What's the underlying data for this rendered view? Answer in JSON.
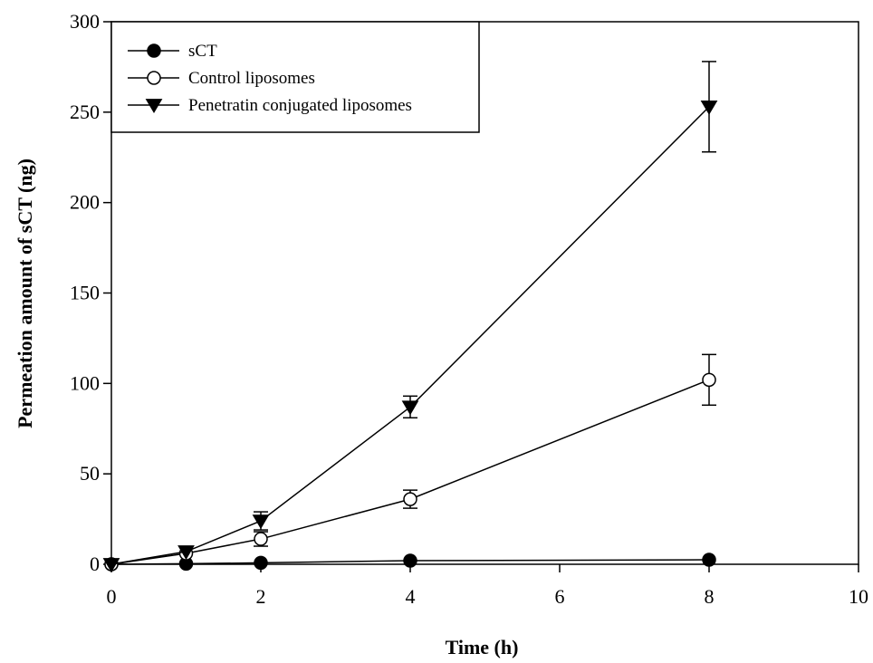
{
  "chart_data": {
    "type": "line",
    "title": "",
    "xlabel": "Time (h)",
    "ylabel": "Permeation amount of sCT (ng)",
    "xlim": [
      0,
      10
    ],
    "ylim": [
      0,
      300
    ],
    "xticks": [
      0,
      2,
      4,
      6,
      8,
      10
    ],
    "yticks": [
      0,
      50,
      100,
      150,
      200,
      250,
      300
    ],
    "grid": false,
    "legend_position": "top-left",
    "series": [
      {
        "name": "sCT",
        "marker": "filled-circle",
        "color": "#000000",
        "points": [
          {
            "x": 0,
            "y": 0,
            "err": 0
          },
          {
            "x": 1,
            "y": 0.3,
            "err": 0
          },
          {
            "x": 2,
            "y": 0.8,
            "err": 0
          },
          {
            "x": 4,
            "y": 2.0,
            "err": 0
          },
          {
            "x": 8,
            "y": 2.5,
            "err": 0
          }
        ]
      },
      {
        "name": "Control liposomes",
        "marker": "open-circle",
        "color": "#000000",
        "points": [
          {
            "x": 0,
            "y": 0,
            "err": 0
          },
          {
            "x": 1,
            "y": 6,
            "err": 0
          },
          {
            "x": 2,
            "y": 14,
            "err": 4
          },
          {
            "x": 4,
            "y": 36,
            "err": 5
          },
          {
            "x": 8,
            "y": 102,
            "err": 14
          }
        ]
      },
      {
        "name": "Penetratin conjugated liposomes",
        "marker": "filled-triangle-down",
        "color": "#000000",
        "points": [
          {
            "x": 0,
            "y": 0,
            "err": 0
          },
          {
            "x": 1,
            "y": 7,
            "err": 0
          },
          {
            "x": 2,
            "y": 24,
            "err": 5
          },
          {
            "x": 4,
            "y": 87,
            "err": 6
          },
          {
            "x": 8,
            "y": 253,
            "err": 25
          }
        ]
      }
    ]
  }
}
